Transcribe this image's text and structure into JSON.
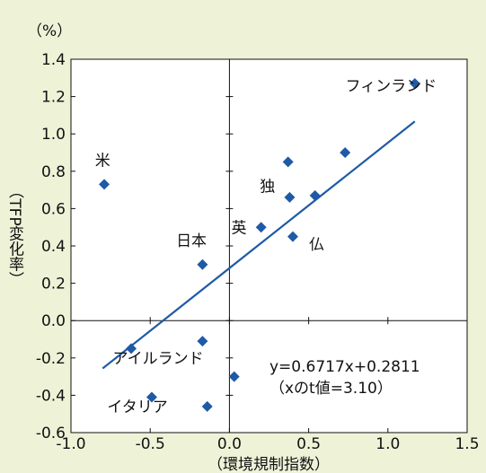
{
  "chart_data": {
    "type": "scatter",
    "title": "",
    "xlabel": "（環境規制指数）",
    "ylabel": "（TFP変化率）",
    "y_unit": "（%）",
    "xlim": [
      -1.0,
      1.5
    ],
    "ylim": [
      -0.6,
      1.4
    ],
    "x_ticks": [
      "-1.0",
      "-0.5",
      "0.0",
      "0.5",
      "1.0",
      "1.5"
    ],
    "y_ticks": [
      "1.4",
      "1.2",
      "1.0",
      "0.8",
      "0.6",
      "0.4",
      "0.2",
      "0.0",
      "-0.2",
      "-0.4",
      "-0.6"
    ],
    "grid": false,
    "marker_color": "#1f5aa6",
    "line_color": "#1f5aa6",
    "background_color": "#eef3d8",
    "points": [
      {
        "x": -0.79,
        "y": 0.73
      },
      {
        "x": -0.62,
        "y": -0.15
      },
      {
        "x": -0.49,
        "y": -0.41
      },
      {
        "x": -0.17,
        "y": 0.3
      },
      {
        "x": -0.17,
        "y": -0.11
      },
      {
        "x": -0.14,
        "y": -0.46
      },
      {
        "x": 0.03,
        "y": -0.3
      },
      {
        "x": 0.2,
        "y": 0.5
      },
      {
        "x": 0.37,
        "y": 0.85
      },
      {
        "x": 0.38,
        "y": 0.66
      },
      {
        "x": 0.4,
        "y": 0.45
      },
      {
        "x": 0.54,
        "y": 0.67
      },
      {
        "x": 0.73,
        "y": 0.9
      },
      {
        "x": 1.17,
        "y": 1.27
      }
    ],
    "trendline": {
      "slope": 0.6717,
      "intercept": 0.2811,
      "x_start": -0.8,
      "x_end": 1.17
    },
    "annotations": [
      {
        "text": "米",
        "x": -0.8,
        "y": 0.83
      },
      {
        "text": "日本",
        "x": -0.24,
        "y": 0.4
      },
      {
        "text": "英",
        "x": 0.06,
        "y": 0.47
      },
      {
        "text": "独",
        "x": 0.24,
        "y": 0.69
      },
      {
        "text": "仏",
        "x": 0.55,
        "y": 0.38
      },
      {
        "text": "フィンランド",
        "x": 1.02,
        "y": 1.23
      },
      {
        "text": "アイルランド",
        "x": -0.45,
        "y": -0.23
      },
      {
        "text": "イタリア",
        "x": -0.58,
        "y": -0.49
      }
    ],
    "equation_lines": [
      "y=0.6717x+0.2811",
      "（xのt値=3.10）"
    ]
  }
}
